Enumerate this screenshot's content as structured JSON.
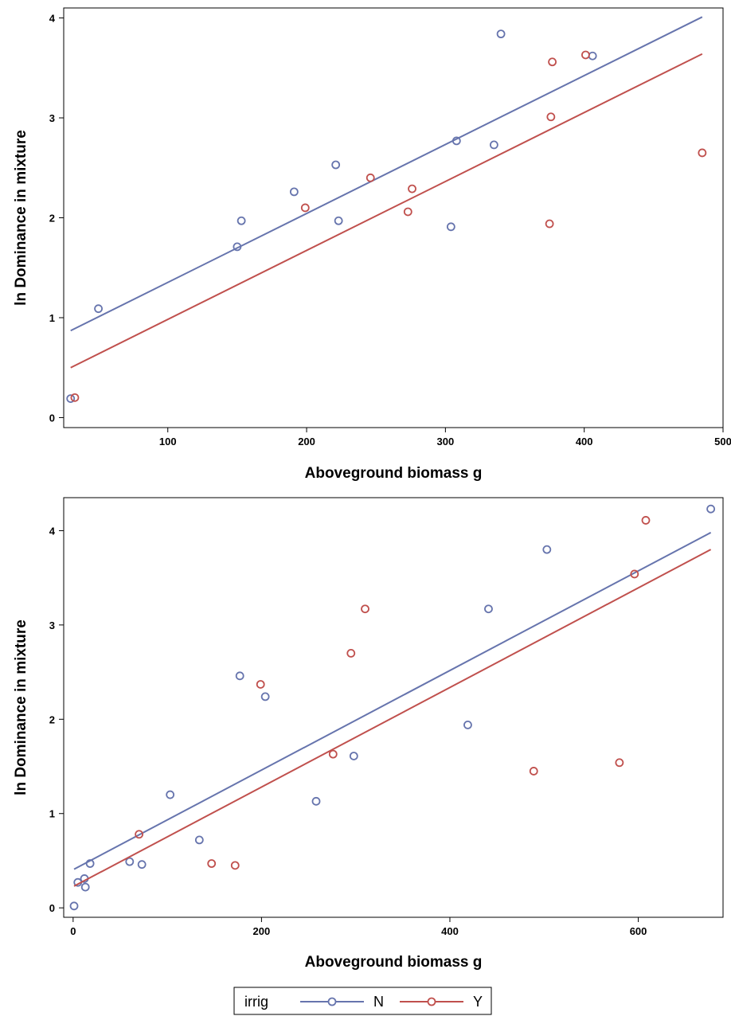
{
  "chart_data": [
    {
      "type": "scatter",
      "title": "",
      "xlabel": "Aboveground biomass g",
      "ylabel": "ln Dominance in mixture",
      "xlim": [
        25,
        500
      ],
      "ylim": [
        -0.1,
        4.1
      ],
      "xticks": [
        100,
        200,
        300,
        400,
        500
      ],
      "yticks": [
        0,
        1,
        2,
        3,
        4
      ],
      "xtick_labels": [
        "100",
        "200",
        "300",
        "400",
        "500"
      ],
      "ytick_labels": [
        "0",
        "1",
        "2",
        "3",
        "4"
      ],
      "grid": false,
      "series": [
        {
          "name": "N",
          "color": "#6674ad",
          "points": [
            [
              30,
              0.19
            ],
            [
              50,
              1.09
            ],
            [
              150,
              1.71
            ],
            [
              153,
              1.97
            ],
            [
              191,
              2.26
            ],
            [
              221,
              2.53
            ],
            [
              223,
              1.97
            ],
            [
              304,
              1.91
            ],
            [
              308,
              2.77
            ],
            [
              335,
              2.73
            ],
            [
              340,
              3.84
            ],
            [
              406,
              3.62
            ]
          ],
          "fit": [
            [
              30,
              0.87
            ],
            [
              485,
              4.01
            ]
          ]
        },
        {
          "name": "Y",
          "color": "#c0504d",
          "points": [
            [
              33,
              0.2
            ],
            [
              199,
              2.1
            ],
            [
              246,
              2.4
            ],
            [
              273,
              2.06
            ],
            [
              276,
              2.29
            ],
            [
              375,
              1.94
            ],
            [
              376,
              3.01
            ],
            [
              377,
              3.56
            ],
            [
              401,
              3.63
            ],
            [
              485,
              2.65
            ]
          ],
          "fit": [
            [
              30,
              0.5
            ],
            [
              485,
              3.64
            ]
          ]
        }
      ]
    },
    {
      "type": "scatter",
      "title": "",
      "xlabel": "Aboveground biomass g",
      "ylabel": "ln Dominance in mixture",
      "xlim": [
        -10,
        690
      ],
      "ylim": [
        -0.1,
        4.35
      ],
      "xticks": [
        0,
        200,
        400,
        600
      ],
      "yticks": [
        0,
        1,
        2,
        3,
        4
      ],
      "xtick_labels": [
        "0",
        "200",
        "400",
        "600"
      ],
      "ytick_labels": [
        "0",
        "1",
        "2",
        "3",
        "4"
      ],
      "grid": false,
      "series": [
        {
          "name": "N",
          "color": "#6674ad",
          "points": [
            [
              1,
              0.02
            ],
            [
              5,
              0.27
            ],
            [
              12,
              0.31
            ],
            [
              13,
              0.22
            ],
            [
              18,
              0.47
            ],
            [
              60,
              0.49
            ],
            [
              73,
              0.46
            ],
            [
              103,
              1.2
            ],
            [
              134,
              0.72
            ],
            [
              177,
              2.46
            ],
            [
              204,
              2.24
            ],
            [
              258,
              1.13
            ],
            [
              298,
              1.61
            ],
            [
              419,
              1.94
            ],
            [
              441,
              3.17
            ],
            [
              503,
              3.8
            ],
            [
              677,
              4.23
            ]
          ],
          "fit": [
            [
              1,
              0.41
            ],
            [
              677,
              3.98
            ]
          ]
        },
        {
          "name": "Y",
          "color": "#c0504d",
          "points": [
            [
              70,
              0.78
            ],
            [
              147,
              0.47
            ],
            [
              172,
              0.45
            ],
            [
              199,
              2.37
            ],
            [
              276,
              1.63
            ],
            [
              295,
              2.7
            ],
            [
              310,
              3.17
            ],
            [
              489,
              1.45
            ],
            [
              580,
              1.54
            ],
            [
              596,
              3.54
            ],
            [
              608,
              4.11
            ]
          ],
          "fit": [
            [
              1,
              0.23
            ],
            [
              677,
              3.8
            ]
          ]
        }
      ]
    }
  ],
  "legend": {
    "title": "irrig",
    "items": [
      {
        "label": "N",
        "color": "#6674ad"
      },
      {
        "label": "Y",
        "color": "#c0504d"
      }
    ]
  }
}
